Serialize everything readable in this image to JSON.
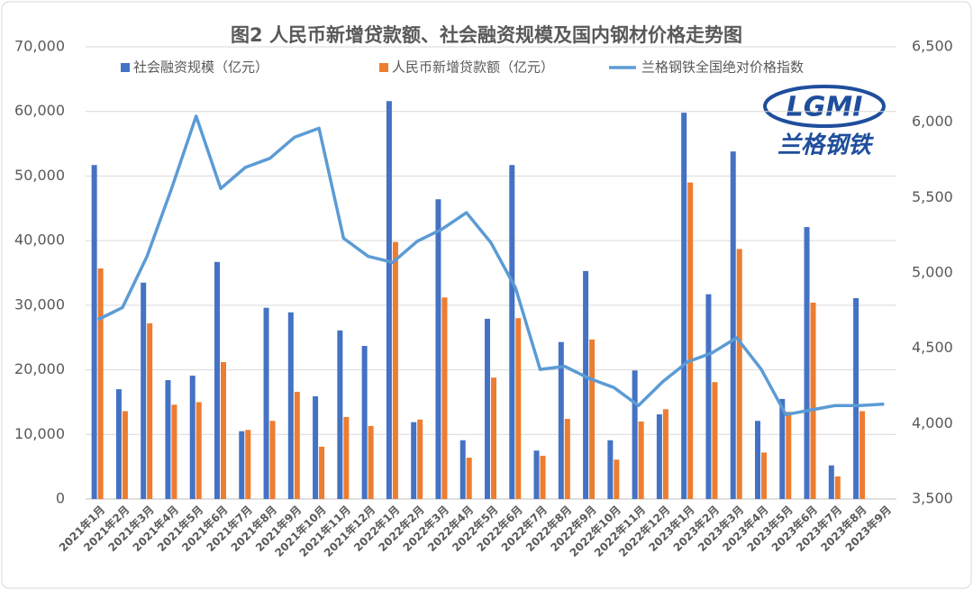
{
  "chart_data": {
    "type": "bar_line",
    "title": "图2 人民币新增贷款额、社会融资规模及国内钢材价格走势图",
    "annotations": [
      "LGMI",
      "兰格钢铁"
    ],
    "categories": [
      "2021年1月",
      "2021年2月",
      "2021年3月",
      "2021年4月",
      "2021年5月",
      "2021年6月",
      "2021年7月",
      "2021年8月",
      "2021年9月",
      "2021年10月",
      "2021年11月",
      "2021年12月",
      "2022年1月",
      "2022年2月",
      "2022年3月",
      "2022年4月",
      "2022年5月",
      "2022年6月",
      "2022年7月",
      "2022年8月",
      "2022年9月",
      "2022年10月",
      "2022年11月",
      "2022年12月",
      "2023年1月",
      "2023年2月",
      "2023年3月",
      "2023年4月",
      "2023年5月",
      "2023年6月",
      "2023年7月",
      "2023年8月",
      "2023年9月"
    ],
    "series": [
      {
        "name": "社会融资规模（亿元）",
        "color": "#4472c4",
        "kind": "bar",
        "values": [
          51700,
          17000,
          33500,
          18400,
          19100,
          36700,
          10500,
          29600,
          28900,
          15900,
          26100,
          23700,
          61600,
          11900,
          46400,
          9100,
          27900,
          51700,
          7500,
          24300,
          35300,
          9100,
          19900,
          13100,
          59800,
          31700,
          53800,
          12100,
          15500,
          42100,
          5200,
          31100,
          null
        ]
      },
      {
        "name": "人民币新增贷款额（亿元）",
        "color": "#ed7d31",
        "kind": "bar",
        "values": [
          35700,
          13600,
          27200,
          14600,
          15000,
          21200,
          10700,
          12100,
          16600,
          8100,
          12700,
          11300,
          39800,
          12300,
          31200,
          6400,
          18800,
          28000,
          6700,
          12400,
          24700,
          6100,
          12000,
          13900,
          49000,
          18100,
          38700,
          7200,
          13500,
          30400,
          3500,
          13600,
          null
        ]
      },
      {
        "name": "兰格钢铁全国绝对价格指数",
        "color": "#5b9bd5",
        "kind": "line",
        "axis": "y2",
        "values": [
          4690,
          4770,
          5110,
          5560,
          6040,
          5560,
          5700,
          5760,
          5900,
          5960,
          5230,
          5110,
          5070,
          5210,
          5290,
          5400,
          5200,
          4900,
          4360,
          4380,
          4300,
          4240,
          4120,
          4280,
          4410,
          4470,
          4570,
          4360,
          4060,
          4090,
          4120,
          4120,
          4130
        ]
      }
    ],
    "ylim": [
      0,
      70000
    ],
    "yticks": [
      0,
      {
        "value": 10000,
        "label": "10,000"
      },
      {
        "value": 20000,
        "label": "20,000"
      },
      {
        "value": 30000,
        "label": "30,000"
      },
      {
        "value": 40000,
        "label": "40,000"
      },
      {
        "value": 50000,
        "label": "50,000"
      },
      {
        "value": 60000,
        "label": "60,000"
      },
      {
        "value": 70000,
        "label": "70,000"
      }
    ],
    "y2lim": [
      3500,
      6500
    ],
    "y2ticks": [
      {
        "value": 3500,
        "label": "3,500"
      },
      {
        "value": 4000,
        "label": "4,000"
      },
      {
        "value": 4500,
        "label": "4,500"
      },
      {
        "value": 5000,
        "label": "5,000"
      },
      {
        "value": 5500,
        "label": "5,500"
      },
      {
        "value": 6000,
        "label": "6,000"
      },
      {
        "value": 6500,
        "label": "6,500"
      }
    ],
    "grid": true
  }
}
